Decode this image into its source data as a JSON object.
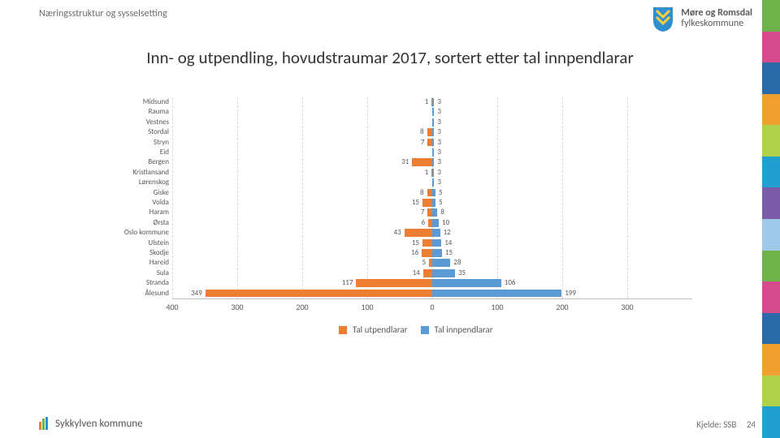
{
  "header": {
    "breadcrumb": "Næringsstruktur og sysselsetting",
    "org_line1": "Møre og Romsdal",
    "org_line2": "fylkeskommune"
  },
  "chart": {
    "type": "diverging-bar",
    "title": "Inn- og utpendling, hovudstraumar 2017, sortert etter tal innpendlarar",
    "categories": [
      "Midsund",
      "Rauma",
      "Vestnes",
      "Stordal",
      "Stryn",
      "Eid",
      "Bergen",
      "Kristiansand",
      "Lørenskog",
      "Giske",
      "Volda",
      "Haram",
      "Ørsta",
      "Oslo kommune",
      "Ulstein",
      "Skodje",
      "Hareid",
      "Sula",
      "Stranda",
      "Ålesund"
    ],
    "out_values": [
      1,
      0,
      0,
      8,
      7,
      0,
      31,
      1,
      0,
      8,
      15,
      7,
      6,
      43,
      15,
      16,
      5,
      14,
      117,
      349
    ],
    "in_values": [
      3,
      3,
      3,
      3,
      3,
      3,
      3,
      3,
      3,
      5,
      5,
      8,
      10,
      12,
      14,
      15,
      28,
      35,
      106,
      199
    ],
    "out_label": "Tal utpendlarar",
    "in_label": "Tal innpendlarar",
    "out_color": "#ed7d31",
    "in_color": "#5b9bd5",
    "x_ticks_left": [
      400,
      300,
      200,
      100
    ],
    "x_ticks_right": [
      0,
      100,
      200,
      300
    ],
    "xmax_each_side": 400,
    "grid_color": "#d9d9d9",
    "axis_color": "#bfbfbf",
    "label_fontsize": 9,
    "tick_fontsize": 10,
    "title_fontsize": 21
  },
  "footer": {
    "left": "Sykkylven kommune",
    "source_label": "Kjelde: SSB",
    "page_number": "24"
  },
  "side_stripe_colors": [
    "#6fb24a",
    "#d64b8e",
    "#2a6aa8",
    "#f0a030",
    "#b0d24a",
    "#20a0d0",
    "#7a5ca8",
    "#a0c8e8",
    "#6fb24a",
    "#d64b8e",
    "#2a6aa8",
    "#f0a030",
    "#b0d24a",
    "#20a0d0"
  ],
  "logo_shield_colors": {
    "fill": "#2f8fd1",
    "accent": "#ffd23a"
  }
}
